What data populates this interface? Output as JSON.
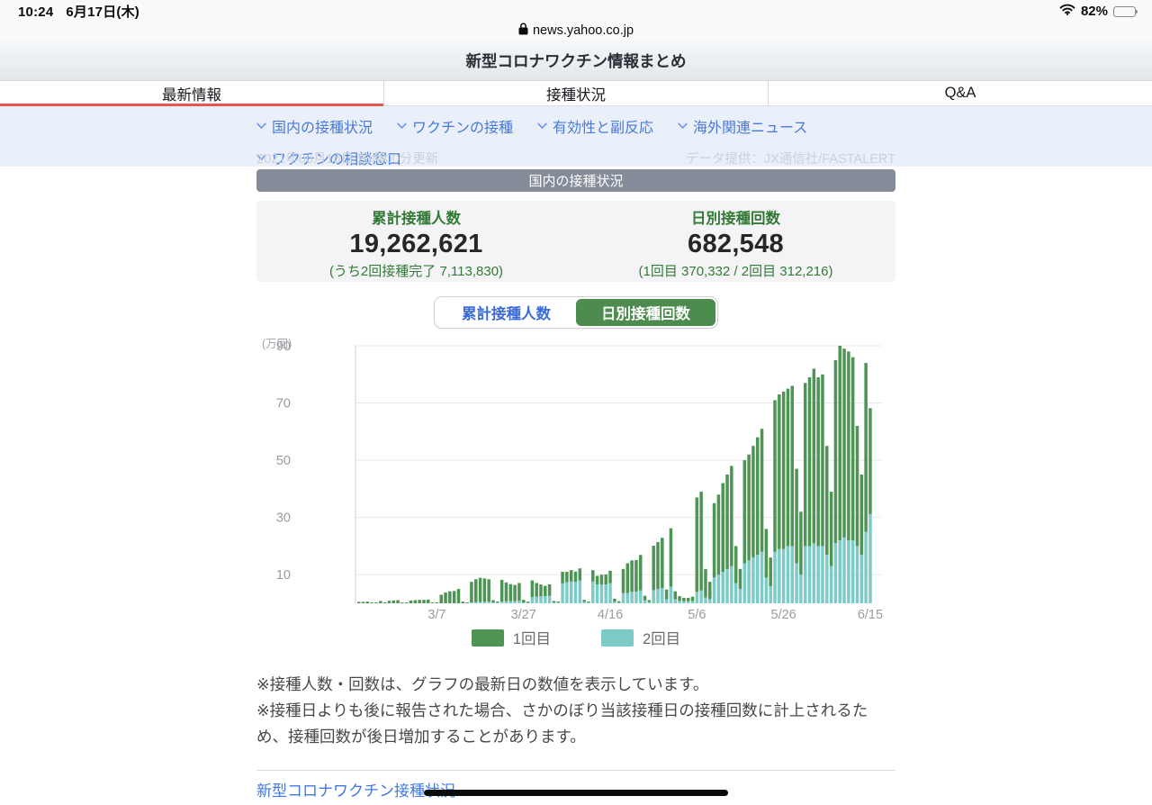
{
  "status_bar": {
    "time": "10:24",
    "date": "6月17日(木)",
    "battery": "82%"
  },
  "url_bar": {
    "domain": "news.yahoo.co.jp"
  },
  "header": {
    "title": "新型コロナワクチン情報まとめ"
  },
  "tabs": [
    {
      "label": "最新情報",
      "active": true
    },
    {
      "label": "接種状況",
      "active": false
    },
    {
      "label": "Q&A",
      "active": false
    }
  ],
  "quick_links": [
    "国内の接種状況",
    "ワクチンの接種",
    "有効性と副反応",
    "海外関連ニュース",
    "ワクチンの相談窓口"
  ],
  "meta": {
    "updated": "2021年06月16日 23時00分更新",
    "provider": "データ提供：JX通信社/FASTALERT"
  },
  "section": {
    "title": "国内の接種状況"
  },
  "stats": {
    "left": {
      "label": "累計接種人数",
      "value": "19,262,621",
      "sub": "(うち2回接種完了 7,113,830)"
    },
    "right": {
      "label": "日別接種回数",
      "value": "682,548",
      "sub": "(1回目 370,332 / 2回目 312,216)"
    }
  },
  "toggle": {
    "options": [
      {
        "label": "累計接種人数",
        "selected": false
      },
      {
        "label": "日別接種回数",
        "selected": true
      }
    ]
  },
  "legend": [
    {
      "label": "1回目",
      "color": "#4e9454"
    },
    {
      "label": "2回目",
      "color": "#7dcbc7"
    }
  ],
  "notes": [
    "※接種人数・回数は、グラフの最新日の数値を表示しています。",
    "※接種日よりも後に報告された場合、さかのぼり当該接種日の接種回数に計上されるため、接種回数が後日増加することがあります。"
  ],
  "footer_link": "新型コロナワクチン接種状況",
  "theme": {
    "link_blue": "#4a78d8",
    "tab_red": "#e8564e",
    "stat_green": "#337a36",
    "bar_green": "#4e9454",
    "bar_teal": "#7dcbc7",
    "section_gray": "#858c99",
    "band_blue": "#e9f0fa",
    "toggle_green": "#4d8b4f"
  },
  "chart_data": {
    "type": "bar",
    "stacked": true,
    "title": "日別接種回数",
    "ylabel": "(万回)",
    "yticks": [
      10,
      30,
      50,
      70,
      90
    ],
    "ylim": [
      0,
      90
    ],
    "grid": true,
    "legend_position": "bottom",
    "xticks": [
      "3/7",
      "3/27",
      "4/16",
      "5/6",
      "5/26",
      "6/15"
    ],
    "categories": [
      "2/17",
      "2/18",
      "2/19",
      "2/20",
      "2/21",
      "2/22",
      "2/23",
      "2/24",
      "2/25",
      "2/26",
      "2/27",
      "2/28",
      "3/1",
      "3/2",
      "3/3",
      "3/4",
      "3/5",
      "3/6",
      "3/7",
      "3/8",
      "3/9",
      "3/10",
      "3/11",
      "3/12",
      "3/13",
      "3/14",
      "3/15",
      "3/16",
      "3/17",
      "3/18",
      "3/19",
      "3/20",
      "3/21",
      "3/22",
      "3/23",
      "3/24",
      "3/25",
      "3/26",
      "3/27",
      "3/28",
      "3/29",
      "3/30",
      "3/31",
      "4/1",
      "4/2",
      "4/3",
      "4/4",
      "4/5",
      "4/6",
      "4/7",
      "4/8",
      "4/9",
      "4/10",
      "4/11",
      "4/12",
      "4/13",
      "4/14",
      "4/15",
      "4/16",
      "4/17",
      "4/18",
      "4/19",
      "4/20",
      "4/21",
      "4/22",
      "4/23",
      "4/24",
      "4/25",
      "4/26",
      "4/27",
      "4/28",
      "4/29",
      "4/30",
      "5/1",
      "5/2",
      "5/3",
      "5/4",
      "5/5",
      "5/6",
      "5/7",
      "5/8",
      "5/9",
      "5/10",
      "5/11",
      "5/12",
      "5/13",
      "5/14",
      "5/15",
      "5/16",
      "5/17",
      "5/18",
      "5/19",
      "5/20",
      "5/21",
      "5/22",
      "5/23",
      "5/24",
      "5/25",
      "5/26",
      "5/27",
      "5/28",
      "5/29",
      "5/30",
      "5/31",
      "6/1",
      "6/2",
      "6/3",
      "6/4",
      "6/5",
      "6/6",
      "6/7",
      "6/8",
      "6/9",
      "6/10",
      "6/11",
      "6/12",
      "6/13",
      "6/14",
      "6/15"
    ],
    "series": [
      {
        "name": "1回目",
        "color": "#4e9454",
        "stack_position": "top",
        "values": [
          0.5,
          0.5,
          0.6,
          0.15,
          0.05,
          0.8,
          0.3,
          0.9,
          1.0,
          1.1,
          0.15,
          0.05,
          1.0,
          1.1,
          1.2,
          1.2,
          1.3,
          0.2,
          0.1,
          3.0,
          3.8,
          4.2,
          4.3,
          5.0,
          0.6,
          0.2,
          7.2,
          8.0,
          8.4,
          8.2,
          7.8,
          0.8,
          0.3,
          7.6,
          6.6,
          6.0,
          5.6,
          6.2,
          0.9,
          0.3,
          5.8,
          4.8,
          4.2,
          3.6,
          4.0,
          0.5,
          0.2,
          4.0,
          3.6,
          4.0,
          3.6,
          4.2,
          0.7,
          0.3,
          4.0,
          3.0,
          3.4,
          3.5,
          4.4,
          1.0,
          0.4,
          8.4,
          10.4,
          11.0,
          11.0,
          12.4,
          1.6,
          0.7,
          15.5,
          16.4,
          17.6,
          3.4,
          20.4,
          2.8,
          1.6,
          1.2,
          1.2,
          1.5,
          33.0,
          34.5,
          10.0,
          6.0,
          26.0,
          28.0,
          31.0,
          33.0,
          35.0,
          13.0,
          7.0,
          36.0,
          37.0,
          39.0,
          41.0,
          43.0,
          17.0,
          10.0,
          53.0,
          54.0,
          55.0,
          55.0,
          56.0,
          33.0,
          22.0,
          57.0,
          59.0,
          61.0,
          59.0,
          60.0,
          38.0,
          26.0,
          64.0,
          68.0,
          66.0,
          66.0,
          64.0,
          42.0,
          28.0,
          59.0,
          37.0
        ]
      },
      {
        "name": "2回目",
        "color": "#7dcbc7",
        "stack_position": "bottom",
        "values": [
          0,
          0,
          0,
          0,
          0,
          0,
          0,
          0,
          0,
          0,
          0,
          0,
          0,
          0,
          0,
          0,
          0,
          0,
          0,
          0,
          0,
          0,
          0,
          0,
          0,
          0,
          0.3,
          0.4,
          0.5,
          0.5,
          0.6,
          0.1,
          0.05,
          0.6,
          0.7,
          0.7,
          0.8,
          0.9,
          0.1,
          0.05,
          2.2,
          2.3,
          2.4,
          2.5,
          2.6,
          0.3,
          0.1,
          7.0,
          7.4,
          7.6,
          7.5,
          8.0,
          0.5,
          0.2,
          7.6,
          6.6,
          6.6,
          6.6,
          7.0,
          0.6,
          0.2,
          3.6,
          3.6,
          4.0,
          4.1,
          4.5,
          1.0,
          0.4,
          4.6,
          5.0,
          5.3,
          1.4,
          5.8,
          1.4,
          0.9,
          0.7,
          0.7,
          0.8,
          4.0,
          4.5,
          2.0,
          1.5,
          9.0,
          10.0,
          11.0,
          12.0,
          13.0,
          7.0,
          5.0,
          14.0,
          15.0,
          16.0,
          17.0,
          18.0,
          9.0,
          6.0,
          18.0,
          19.0,
          19.0,
          20.0,
          20.0,
          14.0,
          10.0,
          20.0,
          20.0,
          21.0,
          20.0,
          20.0,
          17.0,
          13.0,
          21.0,
          22.0,
          23.0,
          22.0,
          22.0,
          20.0,
          17.0,
          25.0,
          31.2
        ]
      }
    ]
  }
}
